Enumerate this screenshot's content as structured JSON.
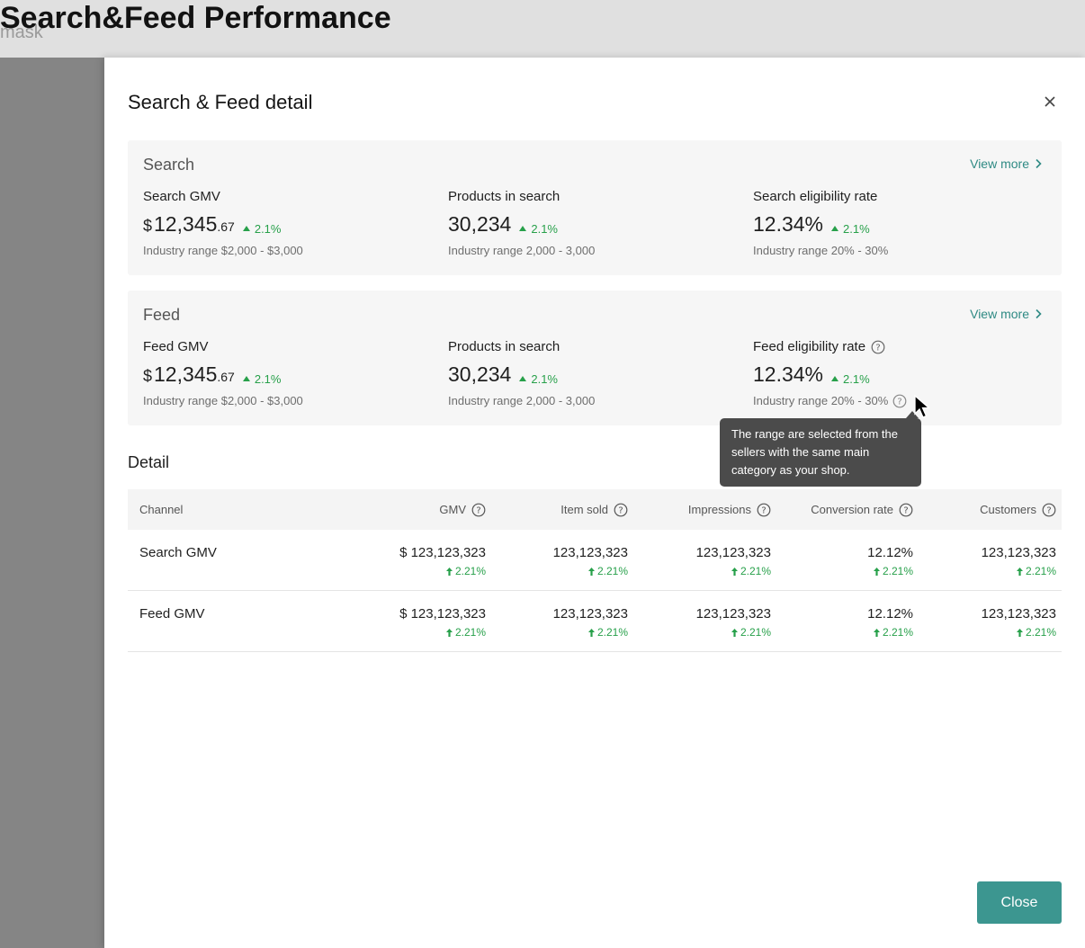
{
  "page": {
    "title": "Search&Feed Performance",
    "mask_label": "mask"
  },
  "drawer": {
    "title": "Search & Feed detail",
    "close_button": "Close"
  },
  "search": {
    "name": "Search",
    "view_more": "View more",
    "metrics": [
      {
        "label": "Search GMV",
        "currency": "$",
        "value": "12,345",
        "cents": ".67",
        "delta": "2.1%",
        "range": "Industry range $2,000 - $3,000"
      },
      {
        "label": "Products in search",
        "value": "30,234",
        "delta": "2.1%",
        "range": "Industry range 2,000 - 3,000"
      },
      {
        "label": "Search eligibility rate",
        "value": "12.34%",
        "delta": "2.1%",
        "range": "Industry range 20% - 30%"
      }
    ]
  },
  "feed": {
    "name": "Feed",
    "view_more": "View more",
    "metrics": [
      {
        "label": "Feed GMV",
        "currency": "$",
        "value": "12,345",
        "cents": ".67",
        "delta": "2.1%",
        "range": "Industry range $2,000 - $3,000"
      },
      {
        "label": "Products in search",
        "value": "30,234",
        "delta": "2.1%",
        "range": "Industry range 2,000 - 3,000"
      },
      {
        "label": "Feed eligibility rate",
        "value": "12.34%",
        "delta": "2.1%",
        "range": "Industry range 20% - 30%"
      }
    ]
  },
  "tooltip": {
    "text": "The range are selected from the sellers with the same main category as your shop."
  },
  "detail": {
    "title": "Detail",
    "columns": [
      "Channel",
      "GMV",
      "Item sold",
      "Impressions",
      "Conversion rate",
      "Customers"
    ],
    "rows": [
      {
        "channel": "Search GMV",
        "gmv": "$ 123,123,323",
        "gmv_delta": "2.21%",
        "items": "123,123,323",
        "items_delta": "2.21%",
        "impressions": "123,123,323",
        "impressions_delta": "2.21%",
        "conversion": "12.12%",
        "conversion_delta": "2.21%",
        "customers": "123,123,323",
        "customers_delta": "2.21%"
      },
      {
        "channel": "Feed GMV",
        "gmv": "$ 123,123,323",
        "gmv_delta": "2.21%",
        "items": "123,123,323",
        "items_delta": "2.21%",
        "impressions": "123,123,323",
        "impressions_delta": "2.21%",
        "conversion": "12.12%",
        "conversion_delta": "2.21%",
        "customers": "123,123,323",
        "customers_delta": "2.21%"
      }
    ]
  },
  "colors": {
    "accent": "#3c9690",
    "link": "#2f8a84",
    "positive": "#27a04a",
    "tooltip_bg": "#4b4b4b"
  },
  "icons": [
    "close-icon",
    "chevron-right-icon",
    "triangle-up-icon",
    "question-circle-icon",
    "arrow-up-icon",
    "mouse-cursor-icon"
  ]
}
